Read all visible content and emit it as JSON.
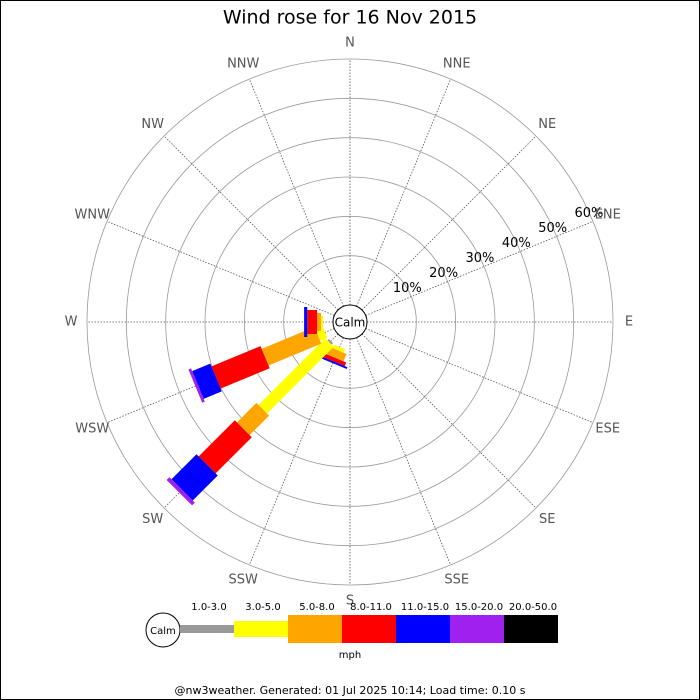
{
  "chart_data": {
    "type": "wind_rose",
    "title": "Wind rose for 16 Nov 2015",
    "calm_label": "Calm",
    "directions": [
      "N",
      "NNE",
      "NE",
      "ENE",
      "E",
      "ESE",
      "SE",
      "SSE",
      "S",
      "SSW",
      "SW",
      "WSW",
      "W",
      "WNW",
      "NW",
      "NNW"
    ],
    "rlim": [
      0,
      60
    ],
    "rticks": [
      {
        "value": 10,
        "label": "10%"
      },
      {
        "value": 20,
        "label": "20%"
      },
      {
        "value": 30,
        "label": "30%"
      },
      {
        "value": 40,
        "label": "40%"
      },
      {
        "value": 50,
        "label": "50%"
      },
      {
        "value": 60,
        "label": "60%"
      }
    ],
    "series": [
      {
        "name": "1.0-3.0",
        "color": "#999999",
        "values": [
          0,
          0,
          0,
          0,
          0,
          0,
          0,
          0,
          0,
          0,
          0.5,
          0,
          0,
          0,
          0,
          0
        ]
      },
      {
        "name": "3.0-5.0",
        "color": "#ffff00",
        "values": [
          0,
          0,
          0,
          0,
          0,
          0,
          0,
          0,
          0,
          1,
          24,
          2,
          0.5,
          0,
          0,
          0
        ]
      },
      {
        "name": "5.0-8.0",
        "color": "#ffa500",
        "values": [
          0,
          0,
          0,
          0,
          0,
          0,
          0,
          0,
          0,
          2,
          7,
          14.5,
          1,
          0,
          0,
          0
        ]
      },
      {
        "name": "8.0-11.0",
        "color": "#ff0000",
        "values": [
          0,
          0,
          0,
          0,
          0,
          0,
          0,
          0,
          0,
          1,
          13,
          13.5,
          2.5,
          0,
          0,
          0
        ]
      },
      {
        "name": "11.0-15.0",
        "color": "#0000ff",
        "values": [
          0,
          0,
          0,
          0,
          0,
          0,
          0,
          0,
          0,
          0.5,
          9,
          5,
          0.8,
          0,
          0,
          0
        ]
      },
      {
        "name": "15.0-20.0",
        "color": "#a020f0",
        "values": [
          0,
          0,
          0,
          0,
          0,
          0,
          0,
          0,
          0,
          0,
          1,
          0.7,
          0,
          0,
          0,
          0
        ]
      },
      {
        "name": "20.0-50.0",
        "color": "#000000",
        "values": [
          0,
          0,
          0,
          0,
          0,
          0,
          0,
          0,
          0,
          0,
          0,
          0,
          0,
          0,
          0,
          0
        ]
      }
    ],
    "unit_label": "mph",
    "footer": "@nw3weather. Generated: 01 Jul 2025 10:14; Load time: 0.10 s"
  }
}
